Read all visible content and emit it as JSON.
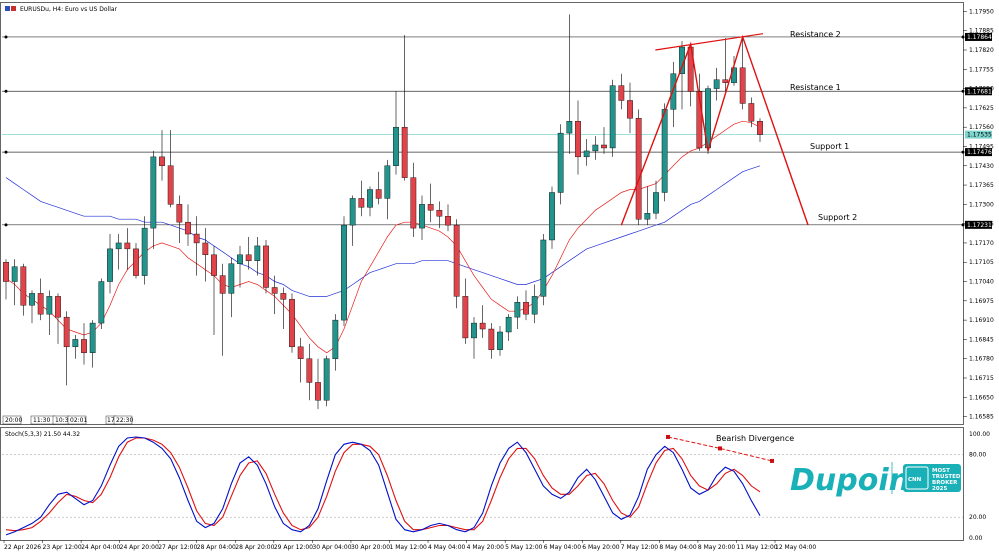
{
  "header": {
    "title": "EURUSDu, H4:  Euro vs US Dollar",
    "stoch_label": "Stoch(5,3,3) 21.50 44.32"
  },
  "price_axis": {
    "ticks": [
      "1.17950",
      "1.17885",
      "1.17820",
      "1.17755",
      "1.17690",
      "1.17625",
      "1.17560",
      "1.17495",
      "1.17430",
      "1.17365",
      "1.17300",
      "1.17235",
      "1.17170",
      "1.17105",
      "1.17040",
      "1.16975",
      "1.16910",
      "1.16845",
      "1.16780",
      "1.16715",
      "1.16650",
      "1.16585"
    ],
    "range": [
      1.1656,
      1.17975
    ],
    "markers": [
      {
        "text": "1.17864",
        "value": 1.17864
      },
      {
        "text": "1.17681",
        "value": 1.17681
      },
      {
        "text": "1.17535",
        "value": 1.17535
      },
      {
        "text": "1.17476",
        "value": 1.17476
      },
      {
        "text": "1.17231",
        "value": 1.17231
      }
    ]
  },
  "stoch_axis": {
    "ticks": [
      "100.00",
      "80.00",
      "20.00",
      "0.00"
    ],
    "range": [
      0,
      100
    ]
  },
  "time_axis": {
    "labels": [
      "22 Apr 2026",
      "23 Apr 12:00",
      "24 Apr 04:00",
      "24 Apr 20:00",
      "27 Apr 12:00",
      "28 Apr 04:00",
      "28 Apr 20:00",
      "29 Apr 12:00",
      "30 Apr 04:00",
      "30 Apr 20:00",
      "1 May 12:00",
      "4 May 04:00",
      "4 May 20:00",
      "5 May 12:00",
      "6 May 04:00",
      "6 May 20:00",
      "7 May 12:00",
      "8 May 04:00",
      "8 May 20:00",
      "11 May 12:00",
      "12 May 04:00"
    ],
    "mini_labels": [
      "20:00",
      "11:30",
      "10:30",
      "02:01",
      "17:",
      "22:30"
    ]
  },
  "annotations": {
    "resistance2": "Resistance 2",
    "resistance1": "Resistance 1",
    "support1": "Support 1",
    "support2": "Support 2",
    "bearish_divergence": "Bearish Divergence"
  },
  "levels": {
    "resistance2": 1.17864,
    "resistance1": 1.17681,
    "current": 1.17535,
    "support1": 1.17476,
    "support2": 1.17231
  },
  "brand": {
    "name": "Dupoin",
    "badge_logo": "CNN",
    "badge_line1": "MOST",
    "badge_line2": "TRUSTED",
    "badge_line3": "BROKER",
    "badge_line4": "2025"
  },
  "colors": {
    "bull": "#22948c",
    "bear": "#e0434a",
    "ma_fast": "#e8201c",
    "ma_slow": "#2230d8",
    "stoch_main": "#0010c8",
    "stoch_signal": "#e01010",
    "current_line": "#7fd6cf",
    "brand": "#1ab0b8"
  },
  "chart_data": {
    "type": "candlestick",
    "symbol": "EURUSDu",
    "timeframe": "H4",
    "candles": [
      {
        "o": 1.17105,
        "h": 1.17115,
        "l": 1.1698,
        "c": 1.1704
      },
      {
        "o": 1.1704,
        "h": 1.17115,
        "l": 1.1696,
        "c": 1.1709
      },
      {
        "o": 1.1709,
        "h": 1.171,
        "l": 1.16925,
        "c": 1.1696
      },
      {
        "o": 1.1696,
        "h": 1.1701,
        "l": 1.169,
        "c": 1.17
      },
      {
        "o": 1.17,
        "h": 1.1705,
        "l": 1.1691,
        "c": 1.1693
      },
      {
        "o": 1.1693,
        "h": 1.1701,
        "l": 1.1686,
        "c": 1.1699
      },
      {
        "o": 1.1699,
        "h": 1.17,
        "l": 1.1683,
        "c": 1.1692
      },
      {
        "o": 1.1692,
        "h": 1.1694,
        "l": 1.1669,
        "c": 1.1682
      },
      {
        "o": 1.1682,
        "h": 1.1686,
        "l": 1.1678,
        "c": 1.16845
      },
      {
        "o": 1.16845,
        "h": 1.169,
        "l": 1.1676,
        "c": 1.168
      },
      {
        "o": 1.168,
        "h": 1.1691,
        "l": 1.1675,
        "c": 1.169
      },
      {
        "o": 1.169,
        "h": 1.1705,
        "l": 1.1688,
        "c": 1.1704
      },
      {
        "o": 1.1704,
        "h": 1.172,
        "l": 1.17,
        "c": 1.1715
      },
      {
        "o": 1.1715,
        "h": 1.172,
        "l": 1.1708,
        "c": 1.1717
      },
      {
        "o": 1.1717,
        "h": 1.1722,
        "l": 1.1708,
        "c": 1.1715
      },
      {
        "o": 1.1715,
        "h": 1.1717,
        "l": 1.1705,
        "c": 1.1706
      },
      {
        "o": 1.1706,
        "h": 1.1726,
        "l": 1.1703,
        "c": 1.1722
      },
      {
        "o": 1.1722,
        "h": 1.1748,
        "l": 1.1715,
        "c": 1.1746
      },
      {
        "o": 1.1746,
        "h": 1.1755,
        "l": 1.1738,
        "c": 1.1743
      },
      {
        "o": 1.1743,
        "h": 1.1755,
        "l": 1.1729,
        "c": 1.173
      },
      {
        "o": 1.173,
        "h": 1.1733,
        "l": 1.1717,
        "c": 1.1724
      },
      {
        "o": 1.1724,
        "h": 1.173,
        "l": 1.1716,
        "c": 1.172
      },
      {
        "o": 1.172,
        "h": 1.1726,
        "l": 1.1706,
        "c": 1.1717
      },
      {
        "o": 1.1717,
        "h": 1.1722,
        "l": 1.1704,
        "c": 1.1713
      },
      {
        "o": 1.1713,
        "h": 1.1716,
        "l": 1.1686,
        "c": 1.1706
      },
      {
        "o": 1.1706,
        "h": 1.171,
        "l": 1.1679,
        "c": 1.17
      },
      {
        "o": 1.17,
        "h": 1.1712,
        "l": 1.1692,
        "c": 1.171
      },
      {
        "o": 1.171,
        "h": 1.1716,
        "l": 1.1702,
        "c": 1.1713
      },
      {
        "o": 1.1713,
        "h": 1.1719,
        "l": 1.1708,
        "c": 1.1711
      },
      {
        "o": 1.1711,
        "h": 1.1719,
        "l": 1.1706,
        "c": 1.1716
      },
      {
        "o": 1.1716,
        "h": 1.1718,
        "l": 1.17,
        "c": 1.1702
      },
      {
        "o": 1.1702,
        "h": 1.1706,
        "l": 1.1693,
        "c": 1.17
      },
      {
        "o": 1.17,
        "h": 1.1702,
        "l": 1.1688,
        "c": 1.1698
      },
      {
        "o": 1.1698,
        "h": 1.17,
        "l": 1.168,
        "c": 1.1682
      },
      {
        "o": 1.1682,
        "h": 1.1685,
        "l": 1.167,
        "c": 1.1678
      },
      {
        "o": 1.1678,
        "h": 1.1683,
        "l": 1.1664,
        "c": 1.167
      },
      {
        "o": 1.167,
        "h": 1.1678,
        "l": 1.1661,
        "c": 1.1664
      },
      {
        "o": 1.1664,
        "h": 1.1679,
        "l": 1.1662,
        "c": 1.1678
      },
      {
        "o": 1.1678,
        "h": 1.1693,
        "l": 1.1674,
        "c": 1.1691
      },
      {
        "o": 1.1691,
        "h": 1.1726,
        "l": 1.1689,
        "c": 1.1723
      },
      {
        "o": 1.1723,
        "h": 1.1733,
        "l": 1.1716,
        "c": 1.1732
      },
      {
        "o": 1.1732,
        "h": 1.1738,
        "l": 1.1726,
        "c": 1.1729
      },
      {
        "o": 1.1729,
        "h": 1.1736,
        "l": 1.1726,
        "c": 1.1735
      },
      {
        "o": 1.1735,
        "h": 1.1741,
        "l": 1.173,
        "c": 1.1732
      },
      {
        "o": 1.1732,
        "h": 1.1745,
        "l": 1.1725,
        "c": 1.1743
      },
      {
        "o": 1.1743,
        "h": 1.1768,
        "l": 1.174,
        "c": 1.1756
      },
      {
        "o": 1.1756,
        "h": 1.1787,
        "l": 1.1738,
        "c": 1.1739
      },
      {
        "o": 1.1739,
        "h": 1.1744,
        "l": 1.1719,
        "c": 1.1722
      },
      {
        "o": 1.1722,
        "h": 1.1733,
        "l": 1.1718,
        "c": 1.173
      },
      {
        "o": 1.173,
        "h": 1.1737,
        "l": 1.1724,
        "c": 1.1728
      },
      {
        "o": 1.1728,
        "h": 1.1731,
        "l": 1.1722,
        "c": 1.1726
      },
      {
        "o": 1.1726,
        "h": 1.173,
        "l": 1.1721,
        "c": 1.1723
      },
      {
        "o": 1.1723,
        "h": 1.1725,
        "l": 1.1695,
        "c": 1.1699
      },
      {
        "o": 1.1699,
        "h": 1.1705,
        "l": 1.1683,
        "c": 1.1685
      },
      {
        "o": 1.1685,
        "h": 1.1692,
        "l": 1.1678,
        "c": 1.169
      },
      {
        "o": 1.169,
        "h": 1.1696,
        "l": 1.1685,
        "c": 1.1688
      },
      {
        "o": 1.1688,
        "h": 1.169,
        "l": 1.1678,
        "c": 1.1681
      },
      {
        "o": 1.1681,
        "h": 1.1689,
        "l": 1.1679,
        "c": 1.1687
      },
      {
        "o": 1.1687,
        "h": 1.1693,
        "l": 1.1684,
        "c": 1.1692
      },
      {
        "o": 1.1692,
        "h": 1.1699,
        "l": 1.1688,
        "c": 1.1697
      },
      {
        "o": 1.1697,
        "h": 1.1701,
        "l": 1.1691,
        "c": 1.1693
      },
      {
        "o": 1.1693,
        "h": 1.1703,
        "l": 1.169,
        "c": 1.1699
      },
      {
        "o": 1.1699,
        "h": 1.172,
        "l": 1.1696,
        "c": 1.1718
      },
      {
        "o": 1.1718,
        "h": 1.1736,
        "l": 1.1715,
        "c": 1.1734
      },
      {
        "o": 1.1734,
        "h": 1.1757,
        "l": 1.173,
        "c": 1.1754
      },
      {
        "o": 1.1754,
        "h": 1.1794,
        "l": 1.1747,
        "c": 1.1758
      },
      {
        "o": 1.1758,
        "h": 1.1765,
        "l": 1.174,
        "c": 1.1746
      },
      {
        "o": 1.1746,
        "h": 1.1752,
        "l": 1.1743,
        "c": 1.1748
      },
      {
        "o": 1.1748,
        "h": 1.1753,
        "l": 1.1745,
        "c": 1.175
      },
      {
        "o": 1.175,
        "h": 1.1756,
        "l": 1.1747,
        "c": 1.1749
      },
      {
        "o": 1.1749,
        "h": 1.1772,
        "l": 1.1746,
        "c": 1.177
      },
      {
        "o": 1.177,
        "h": 1.1774,
        "l": 1.1762,
        "c": 1.1765
      },
      {
        "o": 1.1765,
        "h": 1.1771,
        "l": 1.1754,
        "c": 1.1759
      },
      {
        "o": 1.1759,
        "h": 1.1762,
        "l": 1.1723,
        "c": 1.1725
      },
      {
        "o": 1.1725,
        "h": 1.1736,
        "l": 1.1723,
        "c": 1.1727
      },
      {
        "o": 1.1727,
        "h": 1.1738,
        "l": 1.1725,
        "c": 1.1734
      },
      {
        "o": 1.1734,
        "h": 1.1764,
        "l": 1.1731,
        "c": 1.1762
      },
      {
        "o": 1.1762,
        "h": 1.1778,
        "l": 1.1756,
        "c": 1.1774
      },
      {
        "o": 1.1774,
        "h": 1.1785,
        "l": 1.1762,
        "c": 1.1783
      },
      {
        "o": 1.1783,
        "h": 1.1784,
        "l": 1.1763,
        "c": 1.1768
      },
      {
        "o": 1.1768,
        "h": 1.1774,
        "l": 1.1748,
        "c": 1.1749
      },
      {
        "o": 1.1749,
        "h": 1.177,
        "l": 1.1747,
        "c": 1.1769
      },
      {
        "o": 1.1769,
        "h": 1.1776,
        "l": 1.1765,
        "c": 1.1772
      },
      {
        "o": 1.1772,
        "h": 1.1786,
        "l": 1.1768,
        "c": 1.1771
      },
      {
        "o": 1.1771,
        "h": 1.178,
        "l": 1.177,
        "c": 1.1776
      },
      {
        "o": 1.1776,
        "h": 1.17864,
        "l": 1.1762,
        "c": 1.1764
      },
      {
        "o": 1.1764,
        "h": 1.1766,
        "l": 1.1756,
        "c": 1.1758
      },
      {
        "o": 1.1758,
        "h": 1.1759,
        "l": 1.1751,
        "c": 1.17535
      }
    ],
    "ma_fast": [
      1.1705,
      1.1703,
      1.17,
      1.1698,
      1.1696,
      1.1694,
      1.1691,
      1.1688,
      1.1687,
      1.1686,
      1.1687,
      1.169,
      1.1696,
      1.1703,
      1.1708,
      1.1711,
      1.1714,
      1.1716,
      1.1717,
      1.1716,
      1.1715,
      1.1712,
      1.171,
      1.1708,
      1.1706,
      1.1703,
      1.1702,
      1.1703,
      1.1704,
      1.1703,
      1.1701,
      1.1699,
      1.1696,
      1.1693,
      1.1689,
      1.1685,
      1.1682,
      1.168,
      1.1682,
      1.1688,
      1.1696,
      1.1704,
      1.1709,
      1.1714,
      1.1719,
      1.1723,
      1.1724,
      1.1724,
      1.1723,
      1.1722,
      1.1721,
      1.1719,
      1.1716,
      1.1711,
      1.1706,
      1.1702,
      1.1698,
      1.1696,
      1.1694,
      1.1694,
      1.1695,
      1.1697,
      1.1701,
      1.1706,
      1.1712,
      1.1718,
      1.1722,
      1.1725,
      1.1728,
      1.173,
      1.1732,
      1.1734,
      1.1735,
      1.1735,
      1.1736,
      1.1737,
      1.174,
      1.1743,
      1.1746,
      1.1748,
      1.1749,
      1.1751,
      1.1753,
      1.1755,
      1.1757,
      1.1758,
      1.17575,
      1.1756
    ],
    "ma_slow": [
      1.1739,
      1.1737,
      1.1735,
      1.1733,
      1.1731,
      1.173,
      1.1729,
      1.1728,
      1.1727,
      1.1726,
      1.1726,
      1.1726,
      1.1726,
      1.1725,
      1.1725,
      1.1725,
      1.1724,
      1.1724,
      1.1724,
      1.1723,
      1.1722,
      1.1721,
      1.1719,
      1.1718,
      1.1716,
      1.1714,
      1.1712,
      1.171,
      1.1709,
      1.1707,
      1.1706,
      1.1704,
      1.1703,
      1.1701,
      1.17,
      1.1699,
      1.1699,
      1.1699,
      1.17,
      1.1701,
      1.1703,
      1.1705,
      1.1707,
      1.1708,
      1.1709,
      1.171,
      1.171,
      1.171,
      1.1711,
      1.1711,
      1.1711,
      1.1711,
      1.171,
      1.1709,
      1.1708,
      1.1707,
      1.1706,
      1.1705,
      1.1704,
      1.1703,
      1.1703,
      1.1704,
      1.1705,
      1.1707,
      1.1709,
      1.1711,
      1.1713,
      1.1715,
      1.1716,
      1.1717,
      1.1718,
      1.1719,
      1.172,
      1.1721,
      1.1722,
      1.1723,
      1.1724,
      1.1726,
      1.1728,
      1.173,
      1.1731,
      1.1733,
      1.1735,
      1.1737,
      1.1739,
      1.1741,
      1.1742,
      1.1743
    ],
    "stoch_main": [
      3,
      6,
      10,
      14,
      20,
      32,
      42,
      44,
      38,
      32,
      36,
      50,
      70,
      88,
      96,
      97,
      96,
      92,
      86,
      76,
      58,
      36,
      16,
      10,
      14,
      28,
      52,
      72,
      78,
      70,
      52,
      30,
      14,
      8,
      6,
      12,
      28,
      55,
      80,
      90,
      92,
      90,
      84,
      70,
      44,
      18,
      8,
      6,
      8,
      12,
      14,
      12,
      8,
      6,
      10,
      24,
      50,
      72,
      86,
      92,
      82,
      66,
      50,
      42,
      38,
      44,
      58,
      66,
      56,
      40,
      24,
      18,
      22,
      40,
      66,
      80,
      88,
      82,
      66,
      48,
      42,
      46,
      60,
      68,
      64,
      52,
      36,
      21.5
    ],
    "stoch_signal": [
      8,
      7,
      8,
      10,
      16,
      24,
      34,
      42,
      40,
      36,
      34,
      42,
      58,
      78,
      92,
      96,
      96,
      94,
      90,
      82,
      68,
      48,
      26,
      14,
      12,
      20,
      40,
      60,
      72,
      74,
      62,
      42,
      24,
      12,
      8,
      10,
      20,
      40,
      64,
      82,
      90,
      90,
      88,
      80,
      60,
      36,
      16,
      8,
      8,
      10,
      12,
      12,
      10,
      8,
      8,
      16,
      36,
      58,
      76,
      86,
      86,
      76,
      60,
      48,
      42,
      42,
      50,
      60,
      62,
      52,
      36,
      24,
      20,
      30,
      52,
      72,
      84,
      86,
      76,
      60,
      50,
      46,
      52,
      62,
      66,
      60,
      50,
      44.32
    ],
    "annotation_lines": {
      "resistance2_value": 1.17864,
      "resistance1_value": 1.17681,
      "support1_value": 1.17476,
      "support2_value": 1.17231
    }
  }
}
